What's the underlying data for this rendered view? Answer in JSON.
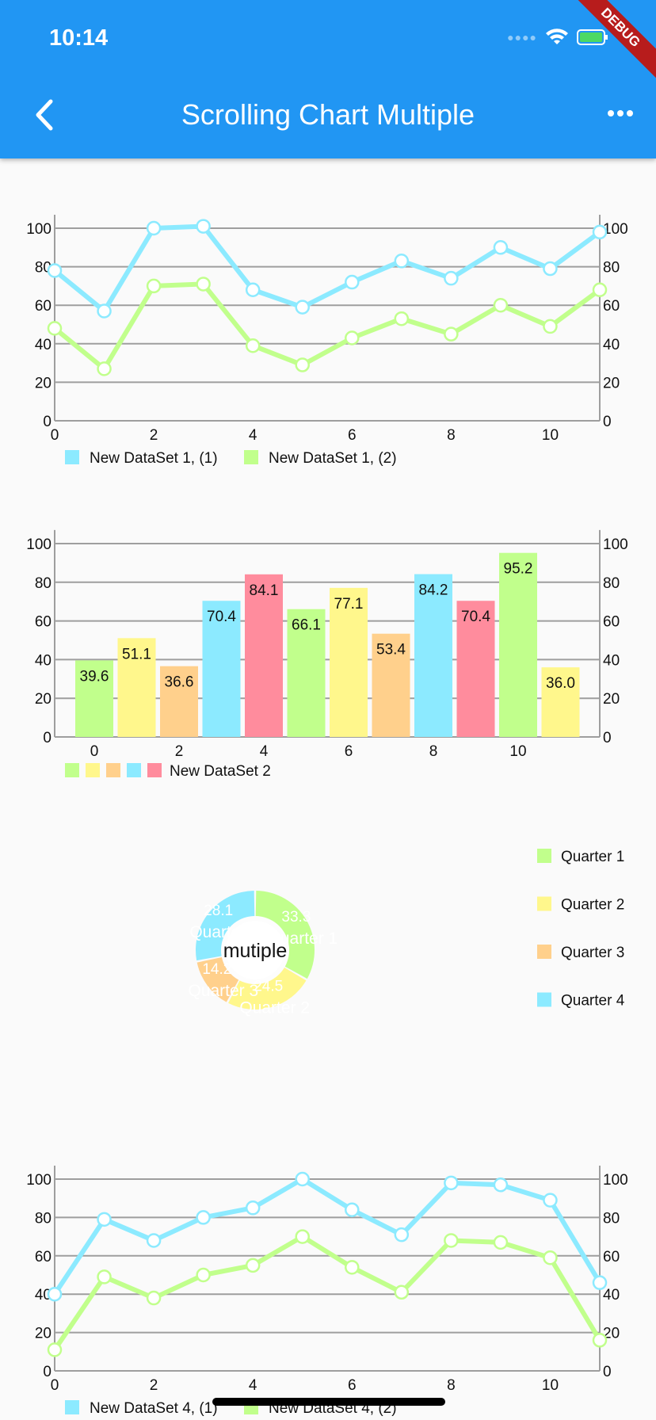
{
  "status_bar": {
    "time": "10:14",
    "debug_banner": "DEBUG"
  },
  "app_bar": {
    "title": "Scrolling Chart Multiple",
    "back_icon": "chevron-left-icon",
    "menu_icon": "more-horizontal-icon"
  },
  "colors": {
    "primary": "#2196f3",
    "cyan": "#8ceaff",
    "green": "#c1ff8c",
    "yellow": "#fff78c",
    "orange": "#ffd08c",
    "pink": "#ff8c9d"
  },
  "chart_data": [
    {
      "type": "line",
      "x": [
        0,
        1,
        2,
        3,
        4,
        5,
        6,
        7,
        8,
        9,
        10,
        11
      ],
      "xticks": [
        "0",
        "2",
        "4",
        "6",
        "8",
        "10"
      ],
      "yticks": [
        "0",
        "20",
        "40",
        "60",
        "80",
        "100"
      ],
      "ylim": [
        0,
        107
      ],
      "series": [
        {
          "name": "New DataSet 1, (1)",
          "color": "#8ceaff",
          "values": [
            78,
            57,
            100,
            101,
            68,
            59,
            72,
            83,
            74,
            90,
            79,
            98
          ]
        },
        {
          "name": "New DataSet 1, (2)",
          "color": "#c1ff8c",
          "values": [
            48,
            27,
            70,
            71,
            39,
            29,
            43,
            53,
            45,
            60,
            49,
            68
          ]
        }
      ]
    },
    {
      "type": "bar",
      "x": [
        0,
        1,
        2,
        3,
        4,
        5,
        6,
        7,
        8,
        9,
        10,
        11
      ],
      "xticks": [
        "0",
        "2",
        "4",
        "6",
        "8",
        "10"
      ],
      "yticks": [
        "0",
        "20",
        "40",
        "60",
        "80",
        "100"
      ],
      "ylim": [
        0,
        107
      ],
      "labels": [
        "39.6",
        "51.1",
        "36.6",
        "70.4",
        "84.1",
        "66.1",
        "77.1",
        "53.4",
        "84.2",
        "70.4",
        "95.2",
        "36.0"
      ],
      "values": [
        39.6,
        51.1,
        36.6,
        70.4,
        84.1,
        66.1,
        77.1,
        53.4,
        84.2,
        70.4,
        95.2,
        36.0
      ],
      "colors": [
        "#c1ff8c",
        "#fff78c",
        "#ffd08c",
        "#8ceaff",
        "#ff8c9d"
      ],
      "legend": "New DataSet 2"
    },
    {
      "type": "pie",
      "center_text": "mutiple",
      "slices": [
        {
          "label": "Quarter 1",
          "value": 33.3,
          "text": "33.3",
          "color": "#c1ff8c"
        },
        {
          "label": "Quarter 2",
          "value": 24.5,
          "text": "24.5",
          "color": "#fff78c"
        },
        {
          "label": "Quarter 3",
          "value": 14.2,
          "text": "14.2",
          "color": "#ffd08c"
        },
        {
          "label": "Quarter 4",
          "value": 28.1,
          "text": "28.1",
          "color": "#8ceaff"
        }
      ]
    },
    {
      "type": "line",
      "x": [
        0,
        1,
        2,
        3,
        4,
        5,
        6,
        7,
        8,
        9,
        10,
        11
      ],
      "xticks": [
        "0",
        "2",
        "4",
        "6",
        "8",
        "10"
      ],
      "yticks": [
        "0",
        "20",
        "40",
        "60",
        "80",
        "100"
      ],
      "ylim": [
        0,
        107
      ],
      "series": [
        {
          "name": "New DataSet 4, (1)",
          "color": "#8ceaff",
          "values": [
            40,
            79,
            68,
            80,
            85,
            100,
            84,
            71,
            98,
            97,
            89,
            46
          ]
        },
        {
          "name": "New DataSet 4, (2)",
          "color": "#c1ff8c",
          "values": [
            11,
            49,
            38,
            50,
            55,
            70,
            54,
            41,
            68,
            67,
            59,
            16
          ]
        }
      ]
    }
  ]
}
